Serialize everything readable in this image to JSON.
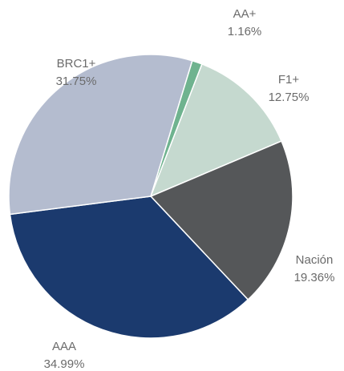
{
  "chart_data": {
    "type": "pie",
    "categories": [
      "AA+",
      "F1+",
      "Nación",
      "AAA",
      "BRC1+"
    ],
    "values": [
      1.16,
      12.75,
      19.36,
      34.99,
      31.75
    ],
    "value_labels": [
      "1.16%",
      "12.75%",
      "19.36%",
      "34.99%",
      "31.75%"
    ],
    "colors": [
      "#6fb38f",
      "#c5d9cf",
      "#555759",
      "#1b3a6e",
      "#b4bccf"
    ]
  }
}
